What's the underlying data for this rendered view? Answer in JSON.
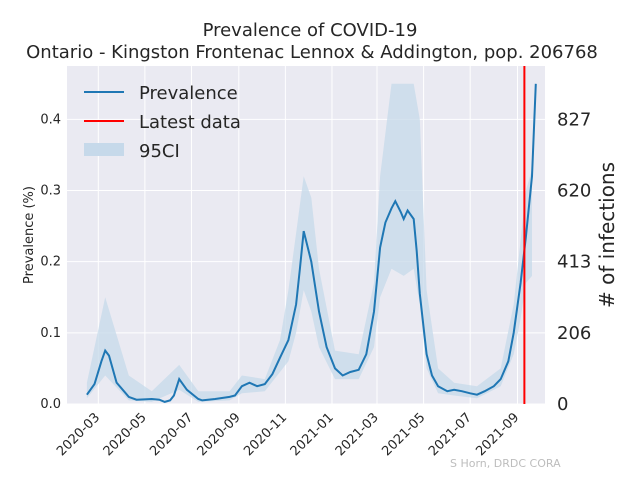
{
  "chart_data": {
    "type": "line",
    "title": "Prevalence of COVID-19",
    "subtitle": "Ontario - Kingston Frontenac Lennox & Addington, pop. 206768",
    "ylabel": "Prevalence (%)",
    "ylabel_right": "# of infections",
    "ylim": [
      0,
      0.475
    ],
    "yticks": [
      "0.0",
      "0.1",
      "0.2",
      "0.3",
      "0.4"
    ],
    "yticks_right": [
      "0",
      "206",
      "413",
      "620",
      "827"
    ],
    "xticks": [
      "2020-03",
      "2020-05",
      "2020-07",
      "2020-09",
      "2020-11",
      "2021-01",
      "2021-03",
      "2021-05",
      "2021-07",
      "2021-09"
    ],
    "xrange": [
      "2020-01-20",
      "2021-10-07"
    ],
    "grid": true,
    "legend": {
      "position": "top-left",
      "entries": [
        {
          "label": "Prevalence",
          "color": "#1f77b4",
          "kind": "line"
        },
        {
          "label": "Latest data",
          "color": "#ff0000",
          "kind": "line"
        },
        {
          "label": "95CI",
          "color": "#c6d9ea",
          "kind": "patch"
        }
      ]
    },
    "latest_data_date": "2021-09-10",
    "colors": {
      "line": "#1f77b4",
      "band": "#c6d9ea",
      "latest": "#ff0000",
      "plot_bg": "#eaeaf2"
    },
    "series": [
      {
        "name": "Prevalence",
        "x": [
          "2020-02-15",
          "2020-02-25",
          "2020-03-05",
          "2020-03-10",
          "2020-03-15",
          "2020-03-25",
          "2020-04-10",
          "2020-04-20",
          "2020-05-10",
          "2020-05-20",
          "2020-05-27",
          "2020-06-03",
          "2020-06-08",
          "2020-06-15",
          "2020-06-25",
          "2020-07-10",
          "2020-07-15",
          "2020-08-01",
          "2020-08-20",
          "2020-08-27",
          "2020-09-05",
          "2020-09-15",
          "2020-09-25",
          "2020-10-05",
          "2020-10-15",
          "2020-10-25",
          "2020-11-05",
          "2020-11-15",
          "2020-11-20",
          "2020-11-25",
          "2020-12-05",
          "2020-12-15",
          "2020-12-25",
          "2021-01-05",
          "2021-01-15",
          "2021-01-25",
          "2021-02-05",
          "2021-02-15",
          "2021-02-25",
          "2021-03-05",
          "2021-03-12",
          "2021-03-20",
          "2021-03-25",
          "2021-04-01",
          "2021-04-05",
          "2021-04-10",
          "2021-04-18",
          "2021-04-22",
          "2021-04-26",
          "2021-05-05",
          "2021-05-12",
          "2021-05-20",
          "2021-06-01",
          "2021-06-10",
          "2021-06-20",
          "2021-07-01",
          "2021-07-10",
          "2021-07-20",
          "2021-08-01",
          "2021-08-10",
          "2021-08-20",
          "2021-08-27",
          "2021-09-05",
          "2021-09-12",
          "2021-09-20",
          "2021-09-25"
        ],
        "values": [
          0.013,
          0.028,
          0.06,
          0.075,
          0.068,
          0.03,
          0.01,
          0.006,
          0.007,
          0.006,
          0.003,
          0.005,
          0.012,
          0.035,
          0.02,
          0.007,
          0.005,
          0.007,
          0.01,
          0.012,
          0.025,
          0.03,
          0.025,
          0.028,
          0.042,
          0.065,
          0.09,
          0.14,
          0.19,
          0.243,
          0.2,
          0.13,
          0.08,
          0.05,
          0.04,
          0.045,
          0.048,
          0.07,
          0.13,
          0.22,
          0.255,
          0.275,
          0.285,
          0.27,
          0.26,
          0.272,
          0.26,
          0.215,
          0.155,
          0.07,
          0.04,
          0.025,
          0.018,
          0.02,
          0.018,
          0.015,
          0.013,
          0.018,
          0.025,
          0.035,
          0.06,
          0.1,
          0.17,
          0.235,
          0.32,
          0.45
        ]
      }
    ],
    "ci_band": {
      "x": [
        "2020-02-15",
        "2020-03-10",
        "2020-04-10",
        "2020-05-10",
        "2020-06-15",
        "2020-07-10",
        "2020-08-20",
        "2020-09-05",
        "2020-10-05",
        "2020-10-25",
        "2020-11-05",
        "2020-11-15",
        "2020-11-25",
        "2020-12-05",
        "2020-12-15",
        "2021-01-05",
        "2021-02-05",
        "2021-02-25",
        "2021-03-05",
        "2021-03-20",
        "2021-04-05",
        "2021-04-18",
        "2021-04-26",
        "2021-05-05",
        "2021-05-20",
        "2021-06-10",
        "2021-07-10",
        "2021-08-10",
        "2021-08-27",
        "2021-09-05",
        "2021-09-12",
        "2021-09-20"
      ],
      "upper": [
        0.03,
        0.15,
        0.04,
        0.018,
        0.055,
        0.018,
        0.018,
        0.04,
        0.035,
        0.09,
        0.16,
        0.24,
        0.32,
        0.29,
        0.19,
        0.075,
        0.07,
        0.17,
        0.32,
        0.45,
        0.45,
        0.45,
        0.4,
        0.16,
        0.05,
        0.03,
        0.025,
        0.05,
        0.14,
        0.23,
        0.3,
        0.33
      ],
      "lower": [
        0.008,
        0.04,
        0.005,
        0.003,
        0.02,
        0.003,
        0.005,
        0.015,
        0.018,
        0.045,
        0.06,
        0.1,
        0.16,
        0.13,
        0.08,
        0.035,
        0.035,
        0.08,
        0.15,
        0.19,
        0.18,
        0.19,
        0.14,
        0.05,
        0.015,
        0.012,
        0.008,
        0.025,
        0.07,
        0.12,
        0.17,
        0.18
      ]
    }
  },
  "credit": "S Horn, DRDC CORA"
}
